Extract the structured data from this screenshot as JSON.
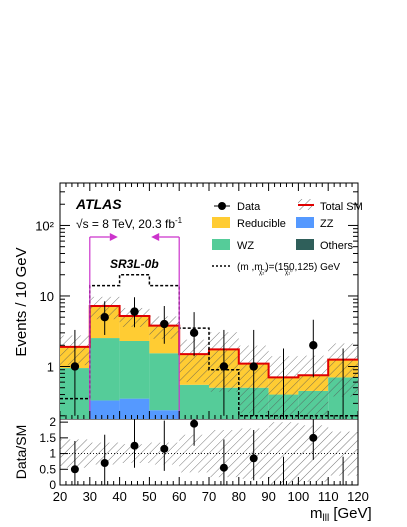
{
  "colors": {
    "reducible": "#ffcc33",
    "zz": "#5599ff",
    "wz": "#55cc99",
    "others": "#2f5f5a",
    "total": "#e00000",
    "arrows": "#cc33cc"
  },
  "labels": {
    "atlas": "ATLAS",
    "energy": "√s = 8 TeV, 20.3 fb",
    "energy_sup": "-1",
    "region": "SR3L-0b",
    "ylabel": "Events / 10 GeV",
    "ratio_ylabel": "Data/SM",
    "xlabel": "m",
    "xlabel_sub": "lll",
    "xlabel_unit": " [GeV]"
  },
  "legend": [
    {
      "key": "data",
      "label": "Data"
    },
    {
      "key": "total",
      "label": "Total SM"
    },
    {
      "key": "reducible",
      "label": "Reducible"
    },
    {
      "key": "zz",
      "label": "ZZ"
    },
    {
      "key": "wz",
      "label": "WZ"
    },
    {
      "key": "others",
      "label": "Others"
    },
    {
      "key": "signal",
      "label": "(m    ,m    )=(150,125) GeV"
    }
  ],
  "chart_data": {
    "type": "bar",
    "stacked": true,
    "x_bin_edges": [
      20,
      30,
      40,
      50,
      60,
      70,
      80,
      90,
      100,
      110,
      120
    ],
    "xlim": [
      20,
      120
    ],
    "ylim": [
      0.18,
      400
    ],
    "yscale": "log",
    "y_tick_labels": [
      "1",
      "10",
      "10²"
    ],
    "x_tick_labels": [
      "20",
      "30",
      "40",
      "50",
      "60",
      "70",
      "80",
      "90",
      "100",
      "110",
      "120"
    ],
    "series": [
      {
        "name": "Others",
        "values": [
          0,
          0,
          0,
          0,
          0,
          0,
          0,
          0,
          0,
          0
        ]
      },
      {
        "name": "ZZ",
        "values": [
          0,
          0.33,
          0.35,
          0.24,
          0,
          0,
          0,
          0,
          0,
          0
        ]
      },
      {
        "name": "WZ",
        "values": [
          0.95,
          2.2,
          1.95,
          1.3,
          0.55,
          0.5,
          0.5,
          0.4,
          0.45,
          0.7
        ]
      },
      {
        "name": "Reducible",
        "values": [
          0.95,
          4.6,
          2.9,
          2.3,
          0.95,
          1.25,
          0.6,
          0.3,
          0.3,
          0.55
        ]
      }
    ],
    "total_sm": [
      1.9,
      7.2,
      5.2,
      3.8,
      1.5,
      1.75,
      1.1,
      0.7,
      0.75,
      1.25
    ],
    "signal_series": [
      0.35,
      14,
      20,
      14,
      3.5,
      0.9,
      0.2,
      0.2,
      0.2,
      0.2
    ],
    "data_points": [
      {
        "x": 25,
        "y": 1,
        "err_lo": 0.8,
        "err_hi": 2.3
      },
      {
        "x": 35,
        "y": 5,
        "err_lo": 2.2,
        "err_hi": 3.4
      },
      {
        "x": 45,
        "y": 6,
        "err_lo": 2.4,
        "err_hi": 3.6
      },
      {
        "x": 55,
        "y": 4,
        "err_lo": 1.9,
        "err_hi": 3.2
      },
      {
        "x": 65,
        "y": 3,
        "err_lo": 1.6,
        "err_hi": 2.9
      },
      {
        "x": 75,
        "y": 1,
        "err_lo": 0.8,
        "err_hi": 2.3
      },
      {
        "x": 85,
        "y": 1,
        "err_lo": 0.8,
        "err_hi": 2.3
      },
      {
        "x": 95,
        "y": 0,
        "err_lo": 0,
        "err_hi": 1.8
      },
      {
        "x": 105,
        "y": 2,
        "err_lo": 1.3,
        "err_hi": 2.6
      },
      {
        "x": 115,
        "y": 0,
        "err_lo": 0,
        "err_hi": 1.8
      }
    ],
    "ratio": {
      "ylim": [
        0,
        2.1
      ],
      "y_tick_labels": [
        "0",
        "0.5",
        "1",
        "1.5",
        "2"
      ],
      "points": [
        0.5,
        0.7,
        1.25,
        1.15,
        1.95,
        0.55,
        0.85,
        0,
        1.5,
        0
      ],
      "band_rel_err": [
        0.45,
        0.35,
        0.3,
        0.35,
        0.6,
        0.75,
        0.8,
        1.0,
        0.9,
        0.7
      ]
    },
    "sr_window": [
      30,
      60
    ]
  }
}
